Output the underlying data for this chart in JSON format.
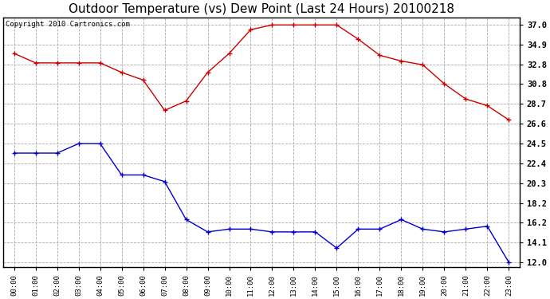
{
  "title": "Outdoor Temperature (vs) Dew Point (Last 24 Hours) 20100218",
  "copyright": "Copyright 2010 Cartronics.com",
  "x_labels": [
    "00:00",
    "01:00",
    "02:00",
    "03:00",
    "04:00",
    "05:00",
    "06:00",
    "07:00",
    "08:00",
    "09:00",
    "10:00",
    "11:00",
    "12:00",
    "13:00",
    "14:00",
    "15:00",
    "16:00",
    "17:00",
    "18:00",
    "19:00",
    "20:00",
    "21:00",
    "22:00",
    "23:00"
  ],
  "temp_data": [
    34.0,
    33.0,
    33.0,
    33.0,
    33.0,
    32.0,
    31.2,
    28.0,
    29.0,
    32.0,
    34.0,
    36.5,
    37.0,
    37.0,
    37.0,
    37.0,
    35.5,
    33.8,
    33.2,
    32.8,
    30.8,
    29.2,
    28.5,
    27.0
  ],
  "dew_data": [
    23.5,
    23.5,
    23.5,
    24.5,
    24.5,
    21.2,
    21.2,
    20.5,
    16.5,
    15.2,
    15.5,
    15.5,
    15.2,
    15.2,
    15.2,
    13.5,
    15.5,
    15.5,
    16.5,
    15.5,
    15.2,
    15.5,
    15.8,
    12.0
  ],
  "temp_color": "#cc0000",
  "dew_color": "#0000cc",
  "bg_color": "#ffffff",
  "plot_bg": "#ffffff",
  "grid_color": "#aaaaaa",
  "yticks": [
    12.0,
    14.1,
    16.2,
    18.2,
    20.3,
    22.4,
    24.5,
    26.6,
    28.7,
    30.8,
    32.8,
    34.9,
    37.0
  ],
  "ylim": [
    11.5,
    37.8
  ],
  "title_fontsize": 11,
  "copyright_fontsize": 6.5
}
